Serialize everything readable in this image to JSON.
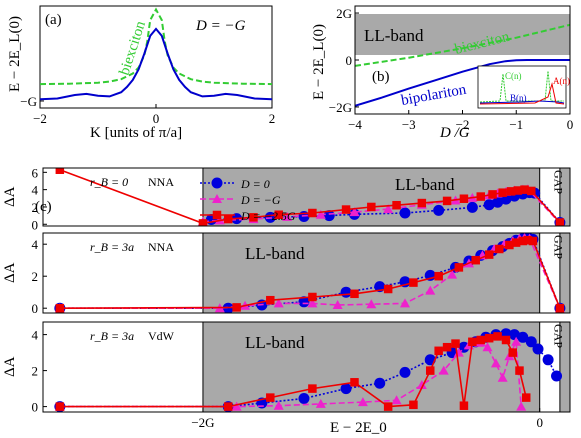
{
  "chart_data": [
    {
      "panel": "(a)",
      "type": "line",
      "annotation": "D = −G",
      "xlabel": "K [units of π/a]",
      "ylabel": "E − 2E_L(0)",
      "xlim": [
        -2,
        2
      ],
      "xticks": [
        "−2",
        "0",
        "2"
      ],
      "yticks": [
        "−G"
      ],
      "series": [
        {
          "name": "biexciton",
          "color": "#33cc33",
          "style": "dashed",
          "x": [
            -2,
            -1.5,
            -1,
            -0.8,
            -0.6,
            -0.4,
            -0.3,
            -0.2,
            -0.15,
            -0.1,
            0,
            0.1,
            0.15,
            0.2,
            0.3,
            0.4,
            0.6,
            0.8,
            1,
            1.5,
            2
          ],
          "y": [
            -0.52,
            -0.51,
            -0.48,
            -0.45,
            -0.38,
            -0.22,
            -0.05,
            0.3,
            0.7,
            1.3,
            1.6,
            1.3,
            0.7,
            0.3,
            -0.05,
            -0.22,
            -0.38,
            -0.45,
            -0.48,
            -0.51,
            -0.52
          ]
        },
        {
          "name": "",
          "color": "#0000cc",
          "style": "solid",
          "x": [
            -2,
            -1.7,
            -1.4,
            -1.2,
            -1.0,
            -0.8,
            -0.6,
            -0.5,
            -0.4,
            -0.3,
            -0.2,
            -0.1,
            0,
            0.1,
            0.2,
            0.3,
            0.4,
            0.5,
            0.6,
            0.8,
            1.0,
            1.2,
            1.4,
            1.7,
            2
          ],
          "y": [
            -0.95,
            -0.93,
            -0.83,
            -0.8,
            -0.85,
            -0.87,
            -0.75,
            -0.6,
            -0.4,
            -0.1,
            0.35,
            0.85,
            1.05,
            0.85,
            0.35,
            -0.1,
            -0.4,
            -0.6,
            -0.75,
            -0.87,
            -0.85,
            -0.8,
            -0.83,
            -0.93,
            -0.95
          ]
        }
      ]
    },
    {
      "panel": "(b)",
      "type": "line",
      "band_label": "LL-band",
      "xlabel": "D /G",
      "ylabel": "E − 2E_L(0)",
      "xlim": [
        -4,
        0
      ],
      "ylim": [
        -2,
        2
      ],
      "xticks": [
        "−4",
        "−3",
        "−2",
        "−1",
        "0"
      ],
      "yticks": [
        "2G",
        "0",
        "−2G"
      ],
      "series": [
        {
          "name": "biexciton",
          "color": "#33cc33",
          "style": "dashed",
          "x": [
            -4,
            -3,
            -2,
            -1,
            0
          ],
          "y": [
            -0.25,
            0.1,
            0.5,
            0.95,
            1.5
          ]
        },
        {
          "name": "bipolariton",
          "color": "#0000cc",
          "style": "solid",
          "x": [
            -4,
            -3.5,
            -3,
            -2.5,
            -2,
            -1.5,
            -1.2,
            -1,
            -0.8,
            -0.6,
            -0.4,
            -0.2,
            0
          ],
          "y": [
            -1.95,
            -1.6,
            -1.22,
            -0.86,
            -0.5,
            -0.18,
            -0.05,
            -0.01,
            0,
            0,
            0,
            0,
            0
          ]
        }
      ],
      "inset_labels": [
        "C(n)",
        "B(n)",
        "A(n)"
      ]
    },
    {
      "panel": "(c)",
      "type": "line",
      "subplots": [
        {
          "r_B": "r_B = 0",
          "model": "NNA",
          "band_label": "LL-band",
          "gap_label": "GAP",
          "ylabel": "ΔA",
          "yticks": [
            "0",
            "2",
            "4",
            "6"
          ],
          "ylim": [
            -0.2,
            6.5
          ],
          "series": [
            {
              "name": "D = 0",
              "color": "#0000dd",
              "marker": "circle",
              "style": "dotted",
              "x": [
                -1.95,
                -1.8,
                -1.6,
                -1.4,
                -1.25,
                -1.1,
                -0.8,
                -0.6,
                -0.4,
                -0.3,
                -0.25,
                -0.2,
                -0.15,
                -0.1,
                -0.06,
                -0.03,
                0.12
              ],
              "y": [
                0.55,
                0.65,
                0.8,
                0.9,
                1.0,
                1.15,
                1.3,
                1.6,
                1.95,
                2.25,
                2.55,
                2.9,
                3.25,
                3.5,
                3.65,
                3.6,
                0.2
              ]
            },
            {
              "name": "D = −G",
              "color": "#ee22cc",
              "marker": "triangle",
              "style": "dashed",
              "x": [
                -2.0,
                -1.9,
                -1.7,
                -1.5,
                -1.3,
                -1.1,
                -0.9,
                -0.7,
                -0.5,
                -0.4,
                -0.3,
                -0.25,
                -0.2,
                -0.15,
                -0.1,
                -0.07,
                0.12
              ],
              "y": [
                0.3,
                0.45,
                0.6,
                0.85,
                1.1,
                1.4,
                1.75,
                2.25,
                2.75,
                3.05,
                3.35,
                3.55,
                3.75,
                3.9,
                4.0,
                4.05,
                0.15
              ]
            },
            {
              "name": "D = −2.5G",
              "color": "#ee0000",
              "marker": "square",
              "style": "solid",
              "x": [
                -2.85,
                -2.0,
                -1.85,
                -1.7,
                -1.55,
                -1.35,
                -1.15,
                -1.0,
                -0.85,
                -0.7,
                -0.55,
                -0.45,
                -0.35,
                -0.28,
                -0.22,
                -0.17,
                -0.13,
                -0.09,
                -0.05,
                0.12
              ],
              "y": [
                6.3,
                0.1,
                0.6,
                0.8,
                1.1,
                1.3,
                1.7,
                2.0,
                2.2,
                2.45,
                2.7,
                2.95,
                3.2,
                3.45,
                3.65,
                3.8,
                3.9,
                4.0,
                3.85,
                0.2
              ]
            }
          ]
        },
        {
          "r_B": "r_B = 3a",
          "model": "NNA",
          "band_label": "LL-band",
          "gap_label": "GAP",
          "ylabel": "ΔA",
          "yticks": [
            "0",
            "2",
            "4"
          ],
          "ylim": [
            -0.3,
            4.7
          ],
          "series": [
            {
              "name": "D = 0",
              "color": "#0000dd",
              "marker": "circle",
              "style": "dotted",
              "x": [
                -2.85,
                -1.85,
                -1.65,
                -1.4,
                -1.15,
                -0.95,
                -0.8,
                -0.65,
                -0.5,
                -0.42,
                -0.35,
                -0.28,
                -0.22,
                -0.18,
                -0.14,
                -0.1,
                -0.07,
                -0.04,
                0.12
              ],
              "y": [
                0,
                0,
                0.2,
                0.4,
                1.0,
                1.35,
                1.65,
                2.05,
                2.55,
                2.95,
                3.3,
                3.6,
                3.85,
                4.05,
                4.25,
                4.35,
                4.4,
                4.3,
                0
              ]
            },
            {
              "name": "D = −G",
              "color": "#ee22cc",
              "marker": "triangle",
              "style": "dashed",
              "x": [
                -2.85,
                -1.9,
                -1.75,
                -1.55,
                -1.35,
                -1.2,
                -1.0,
                -0.8,
                -0.65,
                -0.52,
                -0.42,
                -0.34,
                -0.27,
                -0.21,
                -0.16,
                -0.12,
                -0.09,
                -0.06,
                0.12
              ],
              "y": [
                0,
                0,
                0.15,
                0.3,
                0.3,
                0.2,
                0.25,
                0.3,
                1.1,
                2.1,
                2.8,
                3.3,
                3.7,
                4.0,
                4.2,
                4.35,
                4.4,
                4.35,
                0
              ]
            },
            {
              "name": "D = −2.5G",
              "color": "#ee0000",
              "marker": "square",
              "style": "solid",
              "x": [
                -2.85,
                -1.8,
                -1.6,
                -1.35,
                -1.1,
                -0.9,
                -0.75,
                -0.6,
                -0.48,
                -0.38,
                -0.3,
                -0.24,
                -0.18,
                -0.14,
                -0.1,
                -0.07,
                -0.04,
                0.12
              ],
              "y": [
                0,
                0.05,
                0.5,
                0.7,
                0.9,
                1.2,
                1.6,
                2.0,
                2.55,
                3.0,
                3.35,
                3.7,
                3.95,
                4.1,
                4.2,
                4.25,
                4.2,
                0
              ]
            }
          ]
        },
        {
          "r_B": "r_B = 3a",
          "model": "VdW",
          "band_label": "LL-band",
          "gap_label": "GAP",
          "ylabel": "ΔA",
          "yticks": [
            "0",
            "2",
            "4"
          ],
          "ylim": [
            -0.3,
            4.7
          ],
          "series": [
            {
              "name": "D = 0",
              "color": "#0000dd",
              "marker": "circle",
              "style": "dotted",
              "x": [
                -2.85,
                -1.85,
                -1.65,
                -1.4,
                -1.15,
                -0.95,
                -0.8,
                -0.65,
                -0.52,
                -0.45,
                -0.38,
                -0.32,
                -0.26,
                -0.2,
                -0.15,
                -0.1,
                -0.05,
                -0.01,
                0.05,
                0.1
              ],
              "y": [
                0,
                0,
                0.2,
                0.45,
                1.0,
                1.3,
                1.9,
                2.6,
                3.0,
                3.3,
                3.6,
                3.85,
                4.0,
                4.05,
                4.0,
                3.85,
                3.6,
                3.2,
                2.6,
                1.7
              ]
            },
            {
              "name": "D = −G",
              "color": "#ee22cc",
              "marker": "triangle",
              "style": "dashed",
              "x": [
                -2.85,
                -1.8,
                -1.55,
                -1.3,
                -1.05,
                -0.85,
                -0.7,
                -0.57,
                -0.48,
                -0.42,
                -0.36,
                -0.31,
                -0.26,
                -0.22,
                -0.18,
                -0.14,
                -0.11
              ],
              "y": [
                0,
                0,
                0.05,
                0.15,
                0.25,
                0.35,
                1.2,
                2.0,
                3.0,
                3.4,
                3.55,
                3.3,
                2.4,
                1.6,
                2.8,
                3.6,
                0
              ]
            },
            {
              "name": "D = −2.5G",
              "color": "#ee0000",
              "marker": "square",
              "style": "solid",
              "x": [
                -2.85,
                -1.85,
                -1.6,
                -1.35,
                -1.1,
                -0.9,
                -0.75,
                -0.65,
                -0.6,
                -0.55,
                -0.5,
                -0.45,
                -0.4,
                -0.35,
                -0.3,
                -0.25,
                -0.2,
                -0.16,
                -0.12,
                -0.08
              ],
              "y": [
                0,
                0,
                0.5,
                1.0,
                1.35,
                0,
                0.1,
                2.0,
                3.1,
                3.3,
                3.5,
                0.05,
                3.6,
                3.7,
                3.8,
                3.9,
                3.7,
                3.0,
                2.0,
                0.5
              ]
            }
          ]
        }
      ],
      "xlabel": "E − 2E_0",
      "xlim": [
        -2.95,
        0.18
      ],
      "xticks": [
        "−2G",
        "0"
      ],
      "band_range": [
        -2.0,
        0.0
      ],
      "gap_range": [
        0.0,
        0.12
      ]
    }
  ],
  "colors": {
    "band_gray": "#a9a9a9",
    "blue": "#0000dd",
    "magenta": "#ee22cc",
    "red": "#ee0000",
    "green": "#33cc33"
  }
}
